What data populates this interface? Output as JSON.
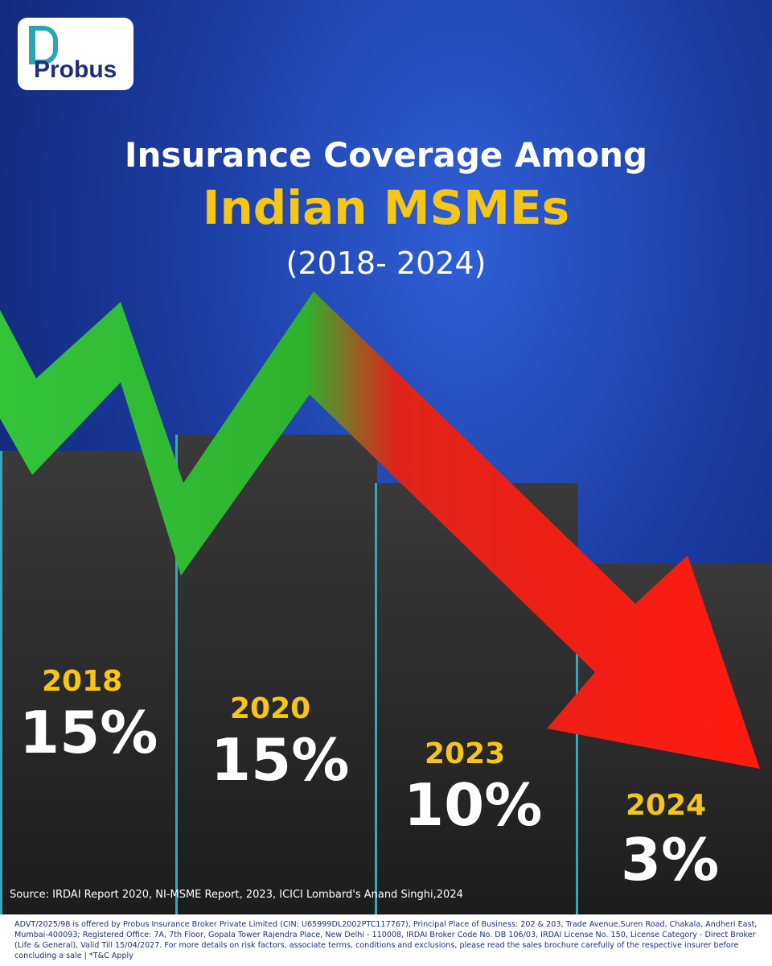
{
  "header": {
    "brand": "Probus",
    "title_line1": "Insurance Coverage Among",
    "title_line2": "Indian MSMEs",
    "title_line3": "(2018- 2024)"
  },
  "stats": [
    {
      "year": "2018",
      "value": "15%"
    },
    {
      "year": "2020",
      "value": "15%"
    },
    {
      "year": "2023",
      "value": "10%"
    },
    {
      "year": "2024",
      "value": "3%"
    }
  ],
  "source": "Source: IRDAI Report 2020, NI-MSME Report, 2023, ICICI Lombard's Anand Singhi,2024",
  "disclaimer": "ADVT/2025/98 is offered by Probus Insurance Broker Private Limited (CIN: U65999DL2002PTC117767), Principal Place of Business: 202 & 203, Trade Avenue,Suren Road, Chakala, Andheri East, Mumbai-400093; Registered Office: 7A, 7th Floor, Gopala Tower Rajendra Place, New Delhi - 110008, IRDAI Broker Code No. DB 106/03, IRDAI License No. 150, License Category - Direct Broker (Life & General), Valid Till 15/04/2027. For more details on risk factors, associate terms, conditions and exclusions, please read the sales brochure carefully of the respective insurer before concluding a sale | *T&C Apply"
}
